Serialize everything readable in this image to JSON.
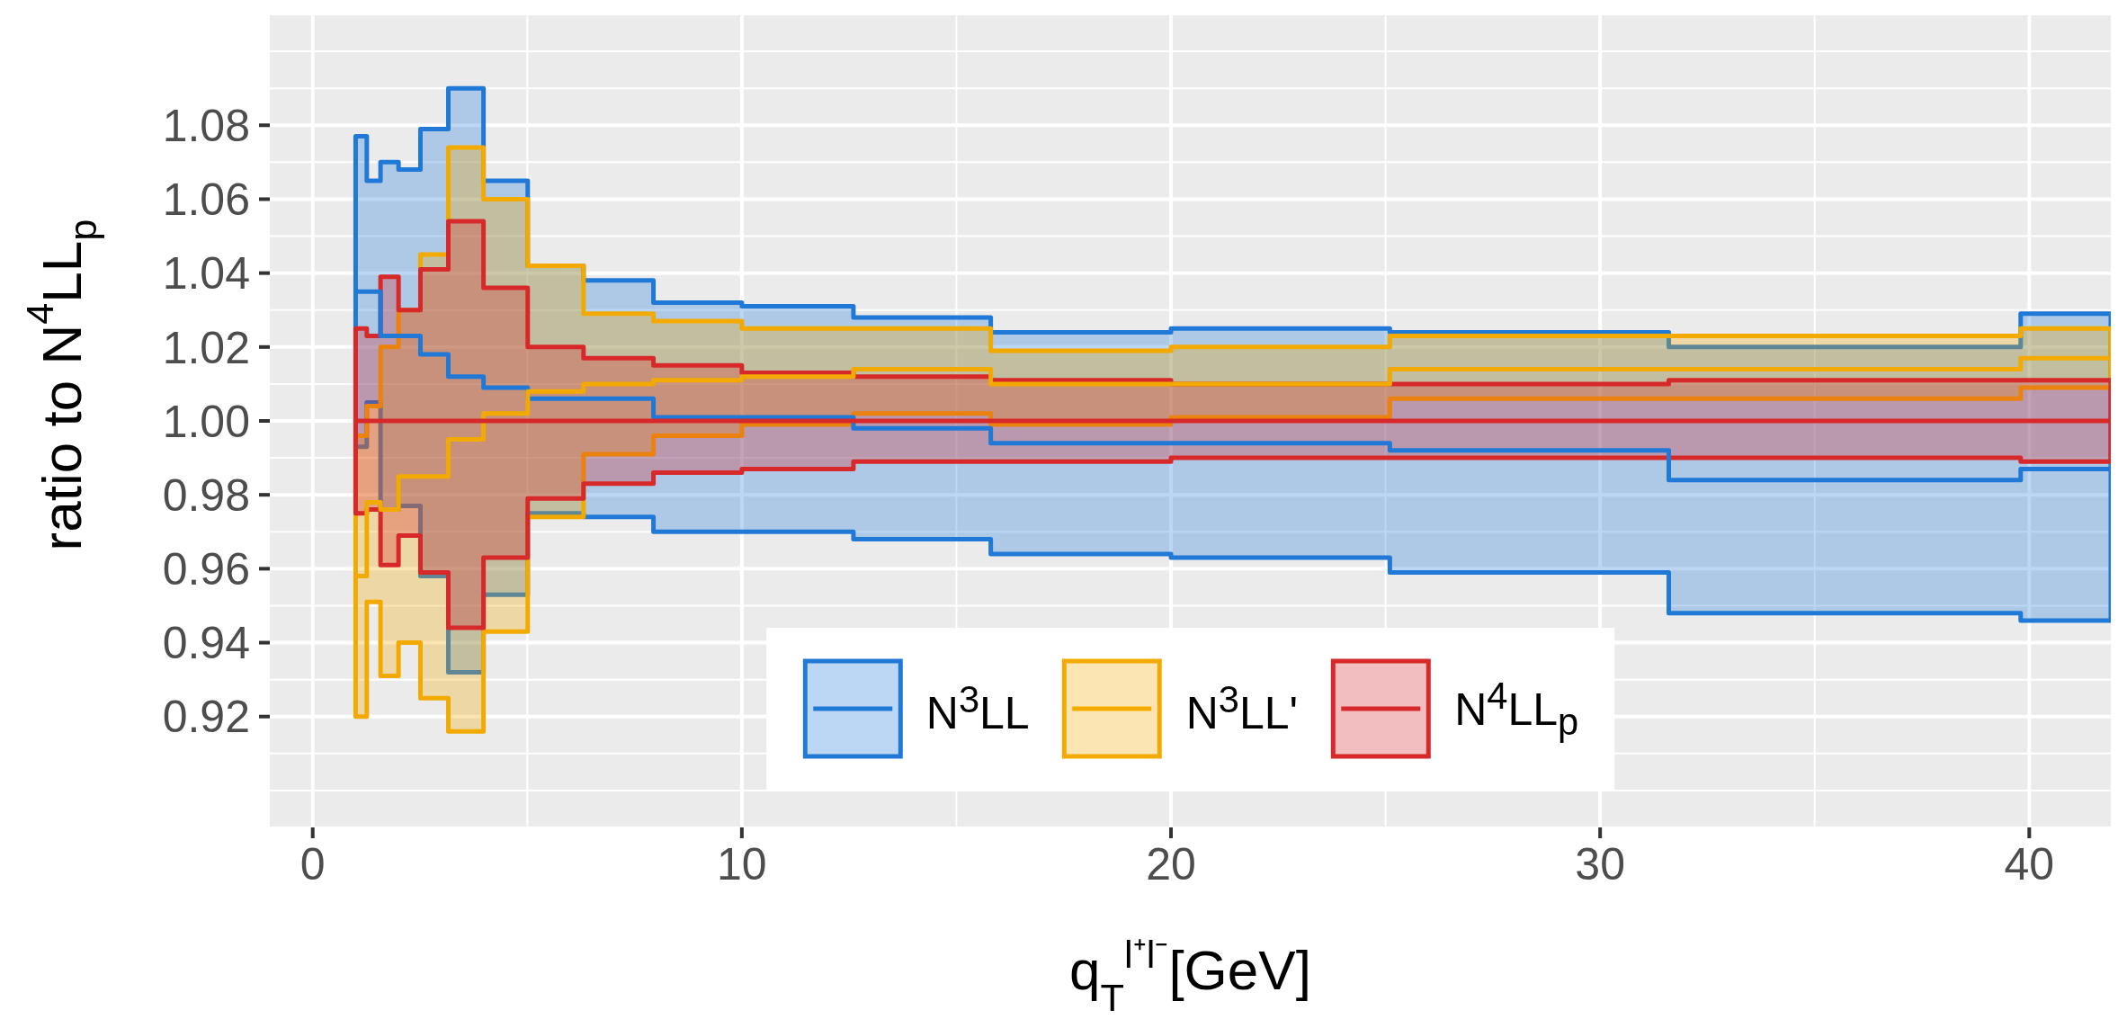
{
  "chart_data": {
    "type": "step",
    "xlabel": "q$_{T}$$^{l⁺l⁻}$[GeV]",
    "ylabel": "ratio to N$^{4}$LL$_{p}$",
    "x": [
      1,
      1.26,
      1.58,
      2,
      2.51,
      3.16,
      3.98,
      5.01,
      6.31,
      7.94,
      10,
      12.6,
      15.8,
      20,
      25.1,
      31.6,
      39.8,
      41.9
    ],
    "series": [
      {
        "name": "N$^{3}$LL",
        "color": "#2079d6",
        "values": [
          1.035,
          1.035,
          1.023,
          1.023,
          1.018,
          1.012,
          1.009,
          1.006,
          1.006,
          1.001,
          1.001,
          0.998,
          0.994,
          0.994,
          0.992,
          0.984,
          0.987,
          0.987
        ],
        "lower": [
          0.993,
          1.005,
          0.976,
          0.977,
          0.958,
          0.932,
          0.953,
          0.975,
          0.974,
          0.97,
          0.97,
          0.968,
          0.964,
          0.963,
          0.959,
          0.948,
          0.946,
          0.946
        ],
        "upper": [
          1.077,
          1.065,
          1.07,
          1.068,
          1.079,
          1.09,
          1.065,
          1.042,
          1.038,
          1.032,
          1.031,
          1.028,
          1.024,
          1.025,
          1.024,
          1.02,
          1.029,
          1.029
        ]
      },
      {
        "name": "N$^{3}$LL'",
        "color": "#f2aa00",
        "values": [
          0.958,
          0.978,
          0.976,
          0.985,
          0.985,
          0.995,
          1.002,
          1.008,
          1.01,
          1.011,
          1.012,
          1.014,
          1.01,
          1.01,
          1.014,
          1.014,
          1.017,
          1.017
        ],
        "lower": [
          0.92,
          0.951,
          0.931,
          0.94,
          0.925,
          0.916,
          0.943,
          0.974,
          0.991,
          0.996,
          0.999,
          1.002,
          0.999,
          1.001,
          1.006,
          1.006,
          1.009,
          1.009
        ],
        "upper": [
          0.996,
          1.004,
          1.02,
          1.03,
          1.045,
          1.074,
          1.06,
          1.042,
          1.029,
          1.027,
          1.025,
          1.025,
          1.019,
          1.02,
          1.023,
          1.023,
          1.025,
          1.025
        ]
      },
      {
        "name": "N$^{4}$LL$_{p}$",
        "color": "#d7282a",
        "values": [
          1,
          1,
          1,
          1,
          1,
          1,
          1,
          1,
          1,
          1,
          1,
          1,
          1,
          1,
          1,
          1,
          1,
          1
        ],
        "lower": [
          0.975,
          0.976,
          0.961,
          0.969,
          0.959,
          0.944,
          0.963,
          0.979,
          0.983,
          0.986,
          0.987,
          0.989,
          0.989,
          0.99,
          0.99,
          0.99,
          0.989,
          0.989
        ],
        "upper": [
          1.025,
          1.023,
          1.039,
          1.03,
          1.041,
          1.054,
          1.036,
          1.02,
          1.017,
          1.015,
          1.013,
          1.012,
          1.011,
          1.01,
          1.01,
          1.011,
          1.011,
          1.011
        ]
      }
    ],
    "xlim": [
      -1,
      41.9
    ],
    "xticks": [
      0,
      10,
      20,
      30,
      40
    ],
    "ylim": [
      0.89,
      1.11
    ],
    "yticks": [
      0.92,
      0.94,
      0.96,
      0.98,
      {
        "value": 1,
        "label": "1.00"
      },
      1.02,
      1.04,
      1.06,
      1.08
    ],
    "grid": true,
    "legend": "bottom"
  }
}
